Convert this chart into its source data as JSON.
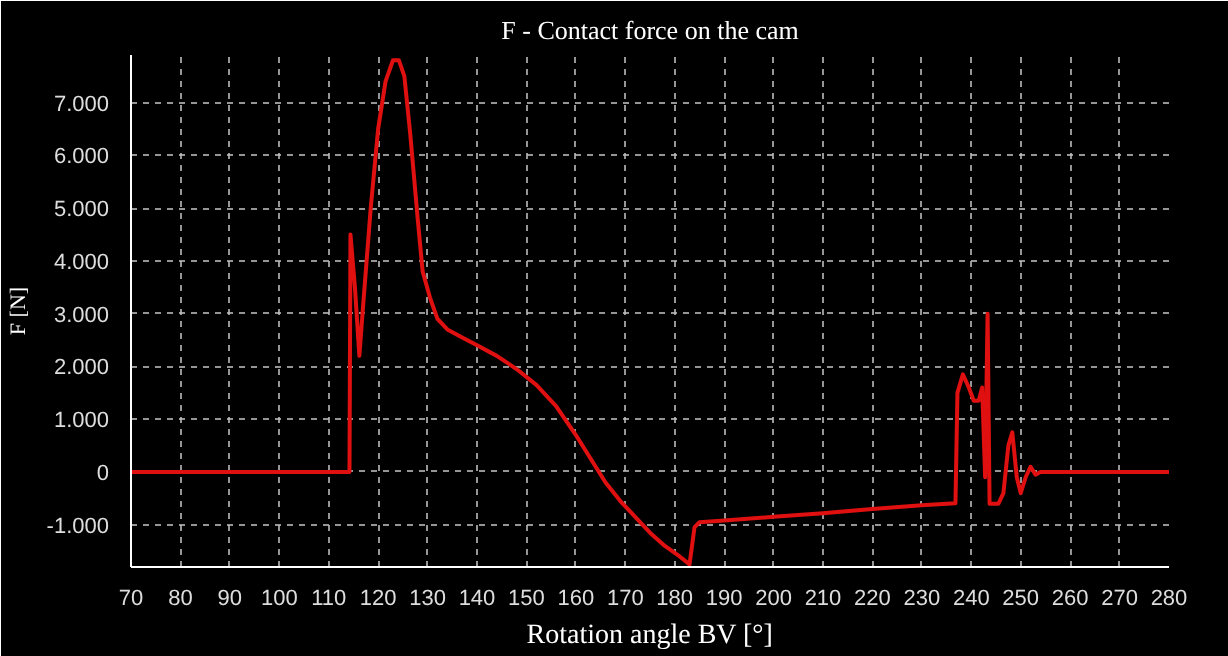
{
  "chart_data": {
    "type": "line",
    "title": "F - Contact force on the cam",
    "xlabel": "Rotation angle BV [°]",
    "ylabel": "F [N]",
    "xlim": [
      70,
      280
    ],
    "ylim": [
      -1800,
      7900
    ],
    "xticks": [
      70,
      80,
      90,
      100,
      110,
      120,
      130,
      140,
      150,
      160,
      170,
      180,
      190,
      200,
      210,
      220,
      230,
      240,
      250,
      260,
      270,
      280
    ],
    "yticks": [
      {
        "value": -1000,
        "label": "-1.000"
      },
      0,
      {
        "value": 1000,
        "label": "1.000"
      },
      {
        "value": 2000,
        "label": "2.000"
      },
      {
        "value": 3000,
        "label": "3.000"
      },
      {
        "value": 4000,
        "label": "4.000"
      },
      {
        "value": 5000,
        "label": "5.000"
      },
      {
        "value": 6000,
        "label": "6.000"
      },
      {
        "value": 7000,
        "label": "7.000"
      }
    ],
    "grid": true,
    "marker": "none",
    "line_style": "solid",
    "series": [
      {
        "color": "#e01010",
        "x": [
          70,
          114.2,
          114.4,
          115.3,
          116.2,
          117,
          118.5,
          120,
          121.5,
          123,
          124.2,
          125.3,
          126.5,
          128,
          129,
          130.5,
          132,
          134,
          137,
          140,
          144,
          148,
          152,
          156,
          160,
          163,
          166,
          169,
          172,
          175,
          178,
          181,
          183,
          184,
          185,
          190,
          200,
          210,
          220,
          230,
          236.8,
          237.2,
          238.3,
          239.5,
          240.5,
          241.5,
          242.2,
          242.8,
          243.3,
          243.7,
          244.3,
          245.5,
          246.5,
          247.5,
          248.3,
          249.2,
          250,
          251,
          252,
          253,
          254,
          256,
          260,
          270,
          280
        ],
        "values": [
          0,
          0,
          4500,
          3500,
          2200,
          3200,
          5000,
          6500,
          7400,
          7800,
          7800,
          7500,
          6400,
          4800,
          3800,
          3300,
          2900,
          2700,
          2550,
          2400,
          2200,
          1950,
          1650,
          1250,
          700,
          250,
          -200,
          -550,
          -850,
          -1150,
          -1400,
          -1600,
          -1750,
          -1050,
          -950,
          -920,
          -850,
          -780,
          -700,
          -630,
          -590,
          1500,
          1850,
          1600,
          1350,
          1350,
          1600,
          -100,
          3000,
          -600,
          -600,
          -600,
          -400,
          500,
          750,
          -100,
          -400,
          -100,
          100,
          -50,
          0,
          0,
          0,
          0,
          0
        ]
      }
    ]
  }
}
